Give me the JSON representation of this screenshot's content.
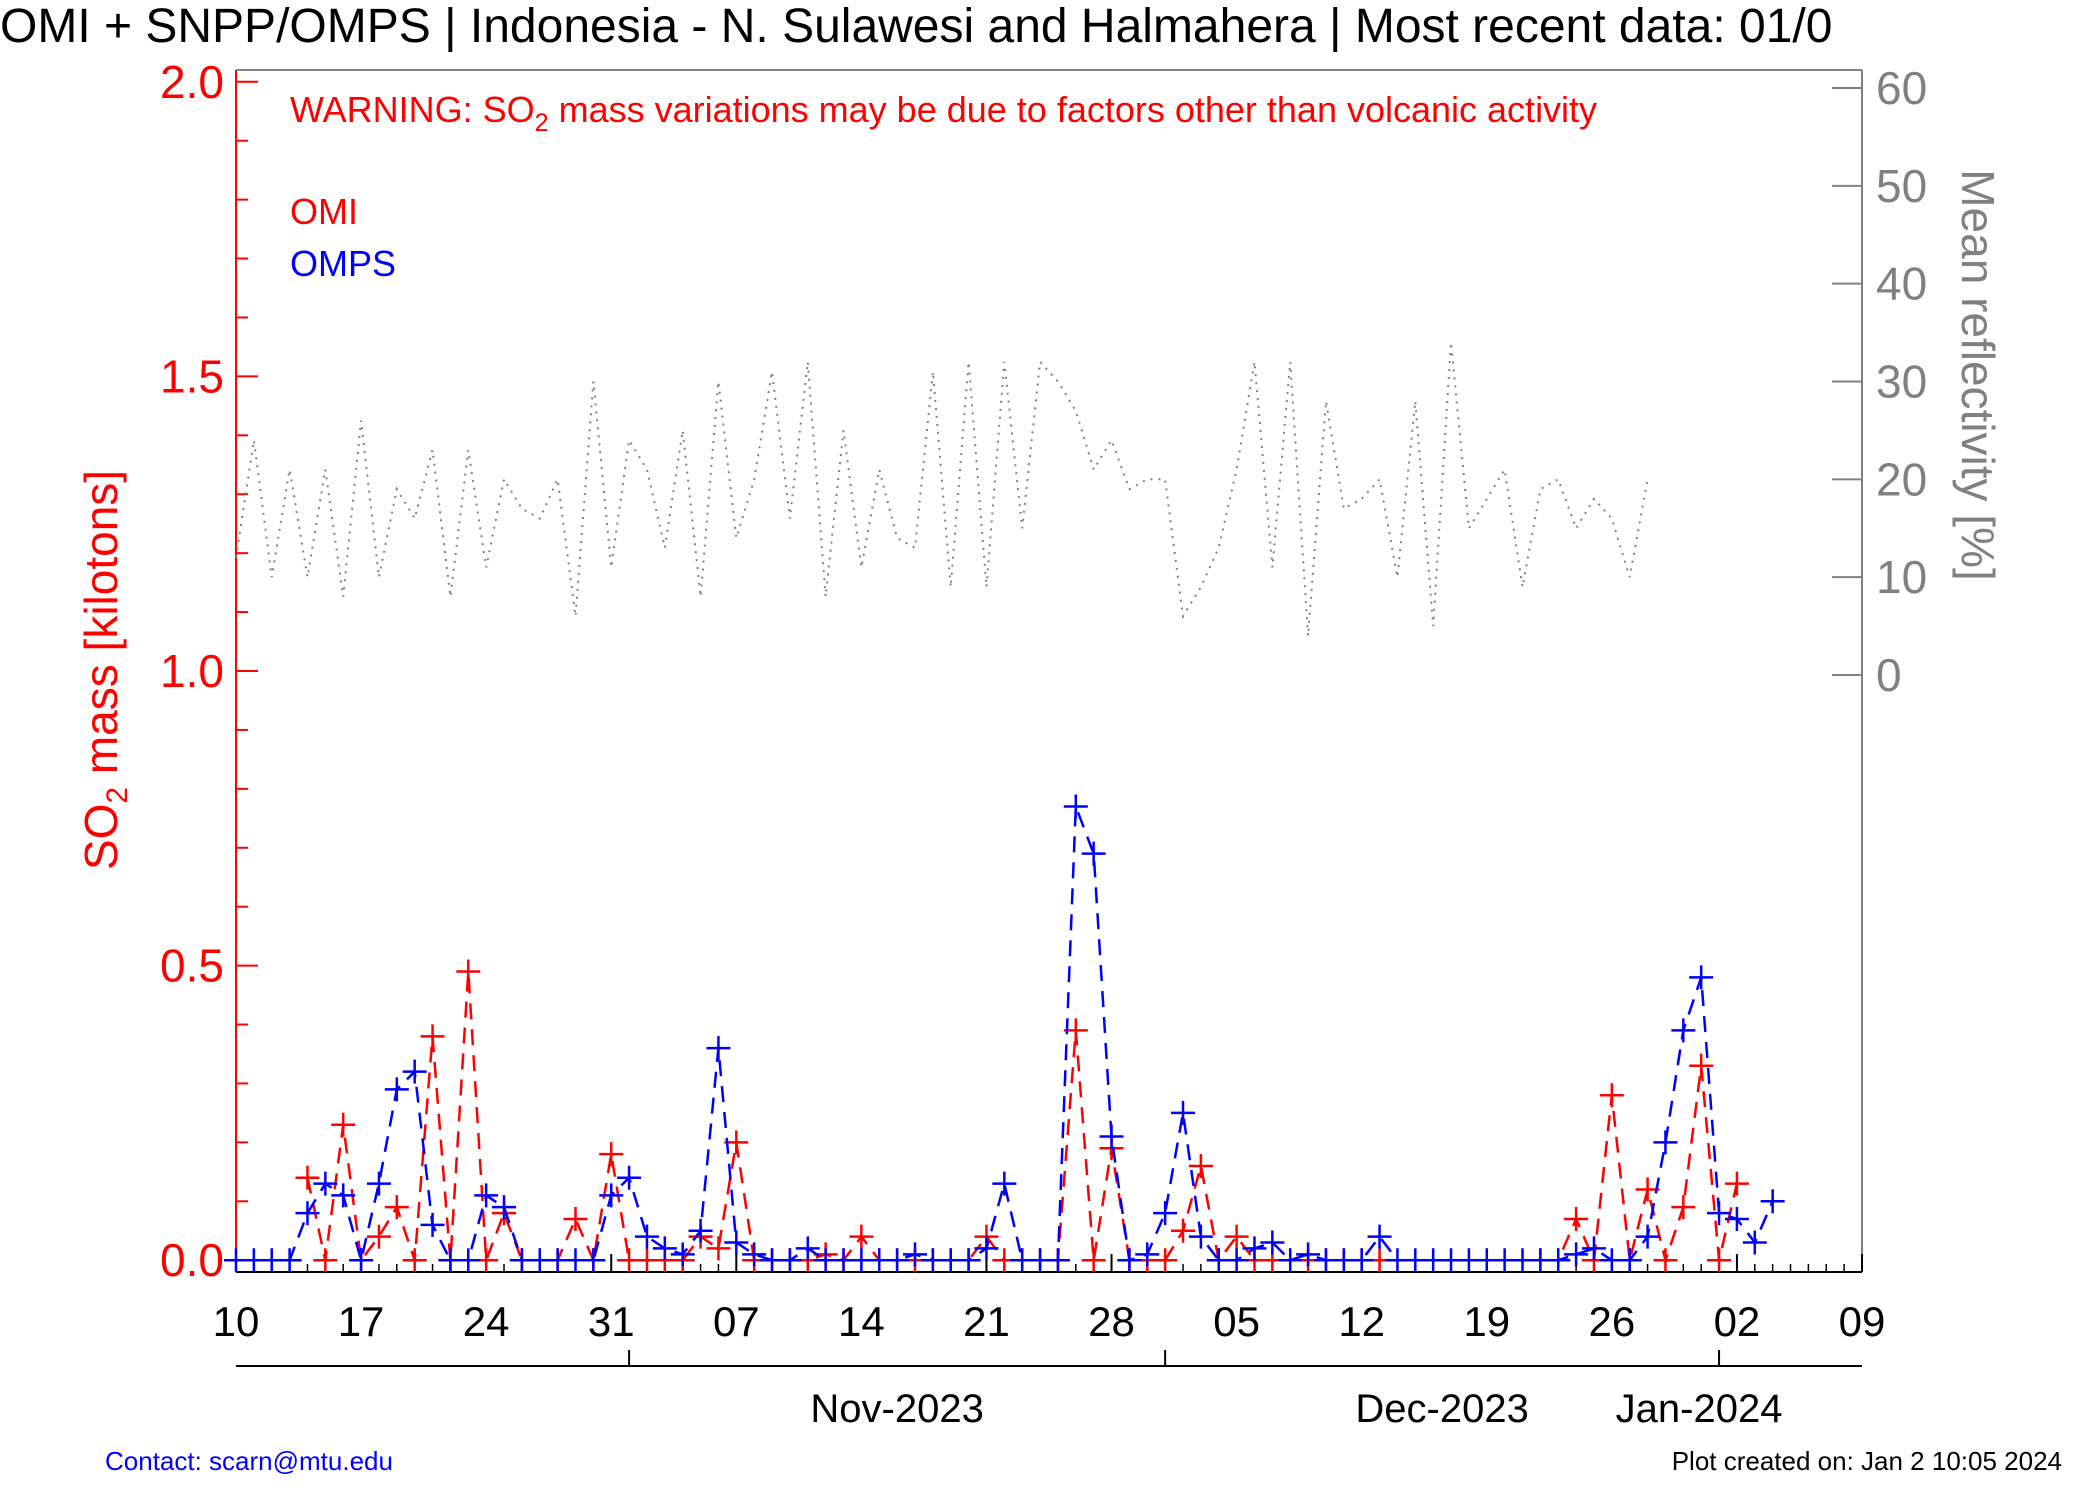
{
  "title": "OMI + SNPP/OMPS | Indonesia - N. Sulawesi and Halmahera | Most recent data: 01/0",
  "warning": {
    "prefix": "WARNING: SO",
    "sub": "2",
    "suffix": " mass variations may be due to factors other than volcanic activity"
  },
  "footer": {
    "contact": "Contact: scarn@mtu.edu",
    "created": "Plot created on: Jan  2 10:05 2024"
  },
  "colors": {
    "omi": "#ff0000",
    "omps": "#0000ff",
    "reflectivity": "#808080",
    "axis_left": "#ff0000",
    "axis_right": "#808080",
    "axis_bottom": "#000000"
  },
  "chart_data": {
    "type": "line",
    "title": "OMI + SNPP/OMPS | Indonesia - N. Sulawesi and Halmahera | Most recent data: 01/0",
    "ylabel": {
      "prefix": "SO",
      "sub": "2",
      "suffix": " mass [kilotons]"
    },
    "y2label": "Mean reflectivity [%]",
    "ylim": [
      -0.02,
      2.02
    ],
    "yticks": [
      "0.0",
      "0.5",
      "1.0",
      "1.5",
      "2.0"
    ],
    "y2lim": [
      0,
      60
    ],
    "y2ticks": [
      "0",
      "10",
      "20",
      "30",
      "40",
      "50",
      "60"
    ],
    "xlim": [
      "2023-10-10",
      "2024-01-09"
    ],
    "xticks": [
      {
        "date": "2023-10-10",
        "label": "10"
      },
      {
        "date": "2023-10-17",
        "label": "17"
      },
      {
        "date": "2023-10-24",
        "label": "24"
      },
      {
        "date": "2023-10-31",
        "label": "31"
      },
      {
        "date": "2023-11-07",
        "label": "07"
      },
      {
        "date": "2023-11-14",
        "label": "14"
      },
      {
        "date": "2023-11-21",
        "label": "21"
      },
      {
        "date": "2023-11-28",
        "label": "28"
      },
      {
        "date": "2023-12-05",
        "label": "05"
      },
      {
        "date": "2023-12-12",
        "label": "12"
      },
      {
        "date": "2023-12-19",
        "label": "19"
      },
      {
        "date": "2023-12-26",
        "label": "26"
      },
      {
        "date": "2024-01-02",
        "label": "02"
      },
      {
        "date": "2024-01-09",
        "label": "09"
      }
    ],
    "months": [
      {
        "date": "2023-11-01",
        "label": "Nov-2023"
      },
      {
        "date": "2023-12-01",
        "label": "Dec-2023"
      },
      {
        "date": "2024-01-01",
        "label": "Jan-2024"
      }
    ],
    "legend": [
      "OMI",
      "OMPS"
    ],
    "series": [
      {
        "name": "OMI",
        "color": "#ff0000",
        "style": "dashed",
        "marker": "+",
        "axis": "left",
        "points": [
          [
            "2023-10-14",
            0.14
          ],
          [
            "2023-10-15",
            0.0
          ],
          [
            "2023-10-16",
            0.23
          ],
          [
            "2023-10-17",
            0.0
          ],
          [
            "2023-10-18",
            0.04
          ],
          [
            "2023-10-19",
            0.09
          ],
          [
            "2023-10-20",
            0.0
          ],
          [
            "2023-10-21",
            0.38
          ],
          [
            "2023-10-22",
            0.0
          ],
          [
            "2023-10-23",
            0.49
          ],
          [
            "2023-10-24",
            0.0
          ],
          [
            "2023-10-25",
            0.08
          ],
          [
            "2023-10-26",
            0.0
          ],
          [
            "2023-10-27",
            0.0
          ],
          [
            "2023-10-28",
            0.0
          ],
          [
            "2023-10-29",
            0.07
          ],
          [
            "2023-10-30",
            0.0
          ],
          [
            "2023-10-31",
            0.18
          ],
          [
            "2023-11-01",
            0.0
          ],
          [
            "2023-11-02",
            0.0
          ],
          [
            "2023-11-03",
            0.0
          ],
          [
            "2023-11-04",
            0.0
          ],
          [
            "2023-11-05",
            0.04
          ],
          [
            "2023-11-06",
            0.02
          ],
          [
            "2023-11-07",
            0.2
          ],
          [
            "2023-11-08",
            0.0
          ],
          [
            "2023-11-09",
            0.0
          ],
          [
            "2023-11-10",
            0.0
          ],
          [
            "2023-11-11",
            0.0
          ],
          [
            "2023-11-12",
            0.01
          ],
          [
            "2023-11-13",
            0.0
          ],
          [
            "2023-11-14",
            0.04
          ],
          [
            "2023-11-15",
            0.0
          ],
          [
            "2023-11-16",
            0.0
          ],
          [
            "2023-11-17",
            0.0
          ],
          [
            "2023-11-18",
            0.0
          ],
          [
            "2023-11-19",
            0.0
          ],
          [
            "2023-11-20",
            0.0
          ],
          [
            "2023-11-21",
            0.04
          ],
          [
            "2023-11-22",
            0.0
          ],
          [
            "2023-11-23",
            0.0
          ],
          [
            "2023-11-24",
            0.0
          ],
          [
            "2023-11-25",
            0.0
          ],
          [
            "2023-11-26",
            0.39
          ],
          [
            "2023-11-27",
            0.0
          ],
          [
            "2023-11-28",
            0.19
          ],
          [
            "2023-11-29",
            0.0
          ],
          [
            "2023-11-30",
            0.0
          ],
          [
            "2023-12-01",
            0.0
          ],
          [
            "2023-12-02",
            0.05
          ],
          [
            "2023-12-03",
            0.16
          ],
          [
            "2023-12-04",
            0.0
          ],
          [
            "2023-12-05",
            0.04
          ],
          [
            "2023-12-06",
            0.0
          ],
          [
            "2023-12-07",
            0.0
          ],
          [
            "2023-12-08",
            0.0
          ],
          [
            "2023-12-09",
            0.0
          ],
          [
            "2023-12-10",
            0.0
          ],
          [
            "2023-12-11",
            0.0
          ],
          [
            "2023-12-12",
            0.0
          ],
          [
            "2023-12-13",
            0.0
          ],
          [
            "2023-12-22",
            0.0
          ],
          [
            "2023-12-23",
            0.0
          ],
          [
            "2023-12-24",
            0.07
          ],
          [
            "2023-12-25",
            0.0
          ],
          [
            "2023-12-26",
            0.28
          ],
          [
            "2023-12-27",
            0.0
          ],
          [
            "2023-12-28",
            0.12
          ],
          [
            "2023-12-29",
            0.0
          ],
          [
            "2023-12-30",
            0.09
          ],
          [
            "2023-12-31",
            0.33
          ],
          [
            "2024-01-01",
            0.0
          ],
          [
            "2024-01-02",
            0.13
          ]
        ]
      },
      {
        "name": "OMPS",
        "color": "#0000ff",
        "style": "dashed",
        "marker": "+",
        "axis": "left",
        "points": [
          [
            "2023-10-10",
            0.0
          ],
          [
            "2023-10-11",
            0.0
          ],
          [
            "2023-10-12",
            0.0
          ],
          [
            "2023-10-13",
            0.0
          ],
          [
            "2023-10-14",
            0.08
          ],
          [
            "2023-10-15",
            0.13
          ],
          [
            "2023-10-16",
            0.11
          ],
          [
            "2023-10-17",
            0.0
          ],
          [
            "2023-10-18",
            0.13
          ],
          [
            "2023-10-19",
            0.29
          ],
          [
            "2023-10-20",
            0.32
          ],
          [
            "2023-10-21",
            0.06
          ],
          [
            "2023-10-22",
            0.0
          ],
          [
            "2023-10-23",
            0.0
          ],
          [
            "2023-10-24",
            0.11
          ],
          [
            "2023-10-25",
            0.09
          ],
          [
            "2023-10-26",
            0.0
          ],
          [
            "2023-10-27",
            0.0
          ],
          [
            "2023-10-28",
            0.0
          ],
          [
            "2023-10-29",
            0.0
          ],
          [
            "2023-10-30",
            0.0
          ],
          [
            "2023-10-31",
            0.11
          ],
          [
            "2023-11-01",
            0.14
          ],
          [
            "2023-11-02",
            0.04
          ],
          [
            "2023-11-03",
            0.02
          ],
          [
            "2023-11-04",
            0.01
          ],
          [
            "2023-11-05",
            0.05
          ],
          [
            "2023-11-06",
            0.36
          ],
          [
            "2023-11-07",
            0.03
          ],
          [
            "2023-11-08",
            0.01
          ],
          [
            "2023-11-09",
            0.0
          ],
          [
            "2023-11-10",
            0.0
          ],
          [
            "2023-11-11",
            0.02
          ],
          [
            "2023-11-12",
            0.0
          ],
          [
            "2023-11-13",
            0.0
          ],
          [
            "2023-11-14",
            0.0
          ],
          [
            "2023-11-15",
            0.0
          ],
          [
            "2023-11-16",
            0.0
          ],
          [
            "2023-11-17",
            0.01
          ],
          [
            "2023-11-18",
            0.0
          ],
          [
            "2023-11-19",
            0.0
          ],
          [
            "2023-11-20",
            0.0
          ],
          [
            "2023-11-21",
            0.02
          ],
          [
            "2023-11-22",
            0.13
          ],
          [
            "2023-11-23",
            0.0
          ],
          [
            "2023-11-24",
            0.0
          ],
          [
            "2023-11-25",
            0.0
          ],
          [
            "2023-11-26",
            0.77
          ],
          [
            "2023-11-27",
            0.69
          ],
          [
            "2023-11-28",
            0.21
          ],
          [
            "2023-11-29",
            0.0
          ],
          [
            "2023-11-30",
            0.01
          ],
          [
            "2023-12-01",
            0.08
          ],
          [
            "2023-12-02",
            0.25
          ],
          [
            "2023-12-03",
            0.04
          ],
          [
            "2023-12-04",
            0.0
          ],
          [
            "2023-12-05",
            0.0
          ],
          [
            "2023-12-06",
            0.02
          ],
          [
            "2023-12-07",
            0.03
          ],
          [
            "2023-12-08",
            0.0
          ],
          [
            "2023-12-09",
            0.01
          ],
          [
            "2023-12-10",
            0.0
          ],
          [
            "2023-12-11",
            0.0
          ],
          [
            "2023-12-12",
            0.0
          ],
          [
            "2023-12-13",
            0.04
          ],
          [
            "2023-12-14",
            0.0
          ],
          [
            "2023-12-15",
            0.0
          ],
          [
            "2023-12-16",
            0.0
          ],
          [
            "2023-12-17",
            0.0
          ],
          [
            "2023-12-18",
            0.0
          ],
          [
            "2023-12-19",
            0.0
          ],
          [
            "2023-12-20",
            0.0
          ],
          [
            "2023-12-21",
            0.0
          ],
          [
            "2023-12-22",
            0.0
          ],
          [
            "2023-12-23",
            0.0
          ],
          [
            "2023-12-24",
            0.01
          ],
          [
            "2023-12-25",
            0.02
          ],
          [
            "2023-12-26",
            0.0
          ],
          [
            "2023-12-27",
            0.0
          ],
          [
            "2023-12-28",
            0.04
          ],
          [
            "2023-12-29",
            0.2
          ],
          [
            "2023-12-30",
            0.39
          ],
          [
            "2023-12-31",
            0.48
          ],
          [
            "2024-01-01",
            0.08
          ],
          [
            "2024-01-02",
            0.07
          ],
          [
            "2024-01-03",
            0.03
          ],
          [
            "2024-01-04",
            0.1
          ]
        ]
      },
      {
        "name": "Mean reflectivity",
        "color": "#808080",
        "style": "dotted",
        "marker": "none",
        "axis": "right",
        "points": [
          [
            "2023-10-10",
            12
          ],
          [
            "2023-10-11",
            24
          ],
          [
            "2023-10-12",
            10
          ],
          [
            "2023-10-13",
            21
          ],
          [
            "2023-10-14",
            10
          ],
          [
            "2023-10-15",
            21
          ],
          [
            "2023-10-16",
            8
          ],
          [
            "2023-10-17",
            26
          ],
          [
            "2023-10-18",
            10
          ],
          [
            "2023-10-19",
            19
          ],
          [
            "2023-10-20",
            16
          ],
          [
            "2023-10-21",
            23
          ],
          [
            "2023-10-22",
            8
          ],
          [
            "2023-10-23",
            23
          ],
          [
            "2023-10-24",
            11
          ],
          [
            "2023-10-25",
            20
          ],
          [
            "2023-10-26",
            17
          ],
          [
            "2023-10-27",
            16
          ],
          [
            "2023-10-28",
            20
          ],
          [
            "2023-10-29",
            6
          ],
          [
            "2023-10-30",
            30
          ],
          [
            "2023-10-31",
            11
          ],
          [
            "2023-11-01",
            24
          ],
          [
            "2023-11-02",
            21
          ],
          [
            "2023-11-03",
            13
          ],
          [
            "2023-11-04",
            25
          ],
          [
            "2023-11-05",
            8
          ],
          [
            "2023-11-06",
            30
          ],
          [
            "2023-11-07",
            14
          ],
          [
            "2023-11-08",
            20
          ],
          [
            "2023-11-09",
            31
          ],
          [
            "2023-11-10",
            16
          ],
          [
            "2023-11-11",
            32
          ],
          [
            "2023-11-12",
            8
          ],
          [
            "2023-11-13",
            25
          ],
          [
            "2023-11-14",
            11
          ],
          [
            "2023-11-15",
            21
          ],
          [
            "2023-11-16",
            14
          ],
          [
            "2023-11-17",
            13
          ],
          [
            "2023-11-18",
            31
          ],
          [
            "2023-11-19",
            9
          ],
          [
            "2023-11-20",
            32
          ],
          [
            "2023-11-21",
            9
          ],
          [
            "2023-11-22",
            32
          ],
          [
            "2023-11-23",
            15
          ],
          [
            "2023-11-24",
            32
          ],
          [
            "2023-11-25",
            30
          ],
          [
            "2023-11-26",
            27
          ],
          [
            "2023-11-27",
            21
          ],
          [
            "2023-11-28",
            24
          ],
          [
            "2023-11-29",
            19
          ],
          [
            "2023-11-30",
            20
          ],
          [
            "2023-12-01",
            20
          ],
          [
            "2023-12-02",
            6
          ],
          [
            "2023-12-03",
            9
          ],
          [
            "2023-12-04",
            13
          ],
          [
            "2023-12-05",
            21
          ],
          [
            "2023-12-06",
            32
          ],
          [
            "2023-12-07",
            11
          ],
          [
            "2023-12-08",
            32
          ],
          [
            "2023-12-09",
            4
          ],
          [
            "2023-12-10",
            28
          ],
          [
            "2023-12-11",
            17
          ],
          [
            "2023-12-12",
            18
          ],
          [
            "2023-12-13",
            20
          ],
          [
            "2023-12-14",
            10
          ],
          [
            "2023-12-15",
            28
          ],
          [
            "2023-12-16",
            5
          ],
          [
            "2023-12-17",
            34
          ],
          [
            "2023-12-18",
            15
          ],
          [
            "2023-12-19",
            18
          ],
          [
            "2023-12-20",
            21
          ],
          [
            "2023-12-21",
            9
          ],
          [
            "2023-12-22",
            19
          ],
          [
            "2023-12-23",
            20
          ],
          [
            "2023-12-24",
            15
          ],
          [
            "2023-12-25",
            18
          ],
          [
            "2023-12-26",
            16
          ],
          [
            "2023-12-27",
            10
          ],
          [
            "2023-12-28",
            20
          ]
        ]
      }
    ],
    "grid": false,
    "legend_position": "top-left"
  }
}
